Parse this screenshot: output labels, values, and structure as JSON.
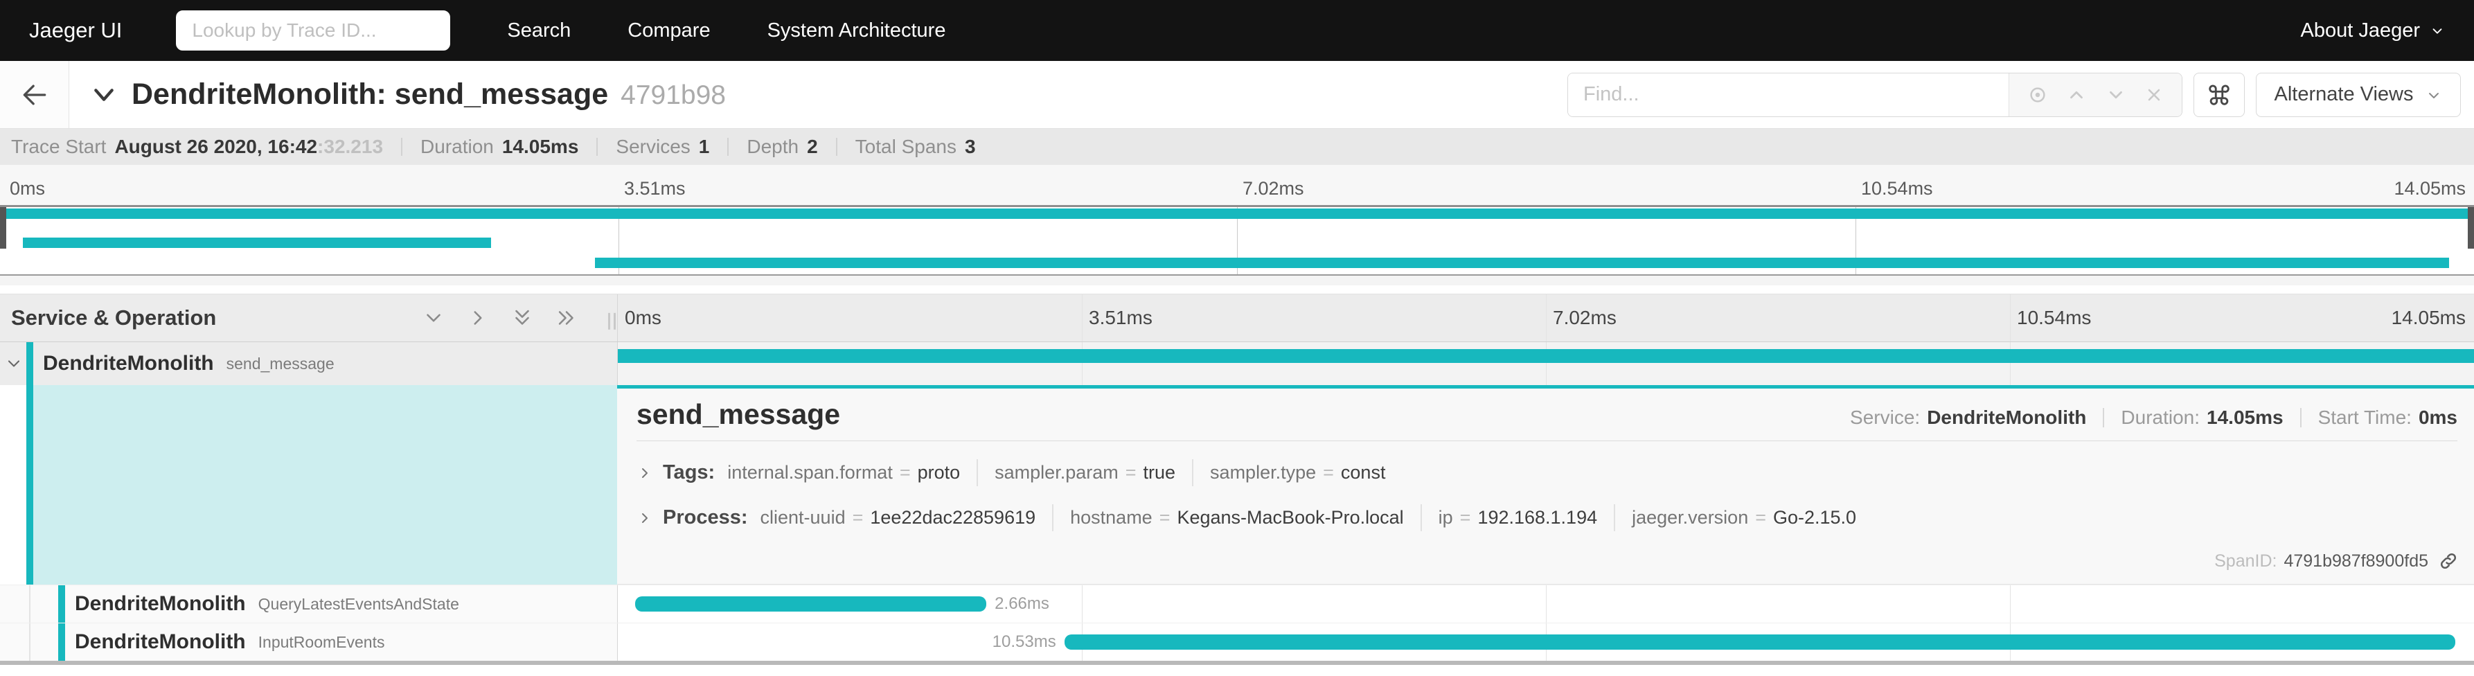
{
  "nav": {
    "brand": "Jaeger UI",
    "lookup_placeholder": "Lookup by Trace ID...",
    "items": [
      {
        "label": "Search"
      },
      {
        "label": "Compare"
      },
      {
        "label": "System Architecture"
      }
    ],
    "about": "About Jaeger"
  },
  "trace_header": {
    "title": "DendriteMonolith: send_message",
    "trace_id_short": "4791b98",
    "find_placeholder": "Find...",
    "alternate_views_label": "Alternate Views"
  },
  "trace_info": {
    "trace_start_label": "Trace Start",
    "trace_start_main": "August 26 2020, 16:42",
    "trace_start_fraction": ":32.213",
    "duration_label": "Duration",
    "duration": "14.05ms",
    "services_label": "Services",
    "services": "1",
    "depth_label": "Depth",
    "depth": "2",
    "total_spans_label": "Total Spans",
    "total_spans": "3"
  },
  "timeline": {
    "total_ms": 14.05,
    "ticks": [
      "0ms",
      "3.51ms",
      "7.02ms",
      "10.54ms",
      "14.05ms"
    ],
    "header_left": "Service & Operation"
  },
  "spans": [
    {
      "service": "DendriteMonolith",
      "operation": "send_message",
      "start_ms": 0,
      "duration_ms": 14.05,
      "depth": 0,
      "expanded": true
    },
    {
      "service": "DendriteMonolith",
      "operation": "QueryLatestEventsAndState",
      "start_ms": 0.13,
      "duration_ms": 2.66,
      "duration_label": "2.66ms",
      "label_side": "right",
      "depth": 1
    },
    {
      "service": "DendriteMonolith",
      "operation": "InputRoomEvents",
      "start_ms": 3.38,
      "duration_ms": 10.53,
      "duration_label": "10.53ms",
      "label_side": "left",
      "depth": 1
    }
  ],
  "detail": {
    "title": "send_message",
    "service_label": "Service:",
    "service": "DendriteMonolith",
    "duration_label": "Duration:",
    "duration": "14.05ms",
    "start_time_label": "Start Time:",
    "start_time": "0ms",
    "tags_label": "Tags:",
    "eq": "=",
    "tags": [
      {
        "key": "internal.span.format",
        "value": "proto"
      },
      {
        "key": "sampler.param",
        "value": "true"
      },
      {
        "key": "sampler.type",
        "value": "const"
      }
    ],
    "process_label": "Process:",
    "process": [
      {
        "key": "client-uuid",
        "value": "1ee22dac22859619"
      },
      {
        "key": "hostname",
        "value": "Kegans-MacBook-Pro.local"
      },
      {
        "key": "ip",
        "value": "192.168.1.194"
      },
      {
        "key": "jaeger.version",
        "value": "Go-2.15.0"
      }
    ],
    "span_id_label": "SpanID:",
    "span_id": "4791b987f8900fd5"
  },
  "colors": {
    "accent": "#17B8BE",
    "accent_light": "#cdeeef",
    "navbar_bg": "#131313"
  }
}
